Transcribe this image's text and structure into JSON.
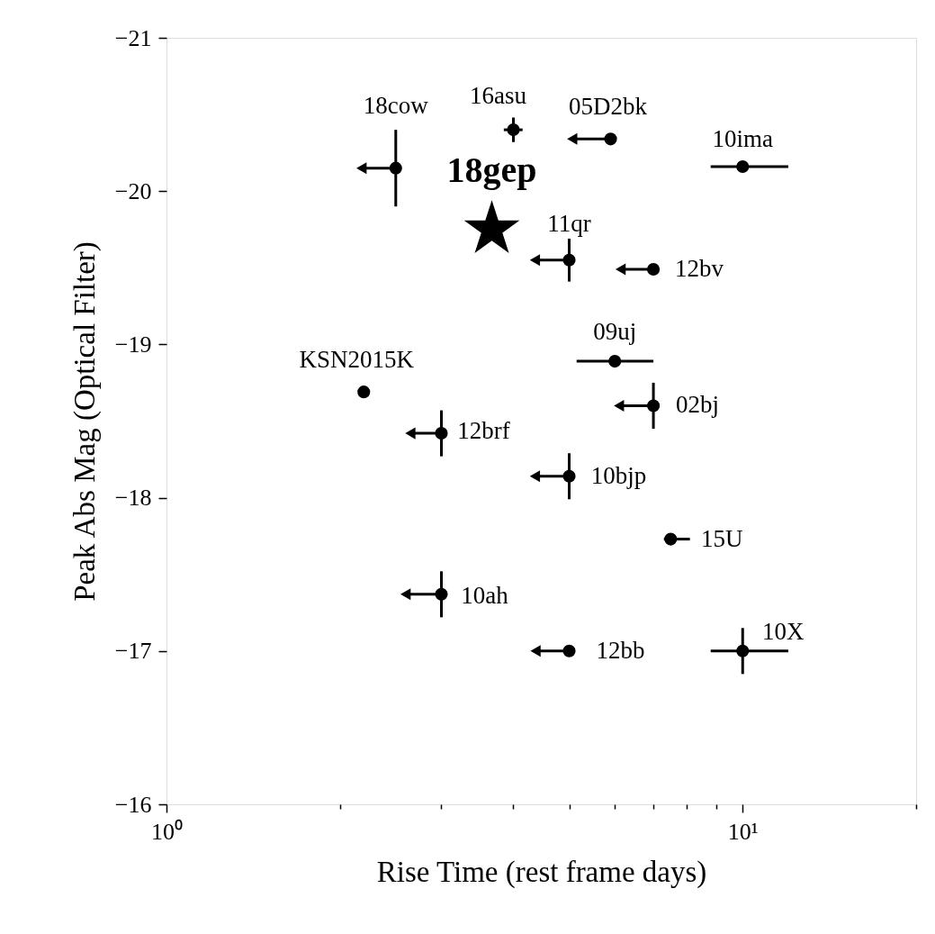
{
  "chart_data": {
    "type": "scatter",
    "xlabel": "Rise Time (rest frame days)",
    "ylabel": "Peak Abs Mag (Optical Filter)",
    "xlim": [
      1,
      20
    ],
    "ylim": [
      -16,
      -21
    ],
    "log": "x",
    "grid": false,
    "legend": false,
    "xticks": [
      {
        "value": 1,
        "label": "10⁰"
      },
      {
        "value": 2,
        "label": null
      },
      {
        "value": 3,
        "label": null
      },
      {
        "value": 4,
        "label": null
      },
      {
        "value": 5,
        "label": null
      },
      {
        "value": 6,
        "label": null
      },
      {
        "value": 7,
        "label": null
      },
      {
        "value": 8,
        "label": null
      },
      {
        "value": 9,
        "label": null
      },
      {
        "value": 10,
        "label": "10¹"
      },
      {
        "value": 20,
        "label": null
      }
    ],
    "yticks": [
      {
        "value": -21,
        "label": "−21"
      },
      {
        "value": -20,
        "label": "−20"
      },
      {
        "value": -19,
        "label": "−19"
      },
      {
        "value": -18,
        "label": "−18"
      },
      {
        "value": -17,
        "label": "−17"
      },
      {
        "value": -16,
        "label": "−16"
      }
    ],
    "series": [
      {
        "marker": "circle",
        "color": "#000000",
        "x": [
          2.5,
          4.0,
          5.9,
          10,
          5.0,
          7.0,
          6.0,
          2.2,
          7.0,
          3.0,
          5.0,
          7.5,
          3.0,
          5.0,
          10
        ],
        "values": [
          -20.15,
          -20.4,
          -20.34,
          -20.16,
          -19.55,
          -19.49,
          -18.89,
          -18.69,
          -18.6,
          -18.42,
          -18.14,
          -17.73,
          -17.37,
          -17.0,
          -17.0
        ],
        "errors": [
          0.25,
          0.08,
          null,
          null,
          0.14,
          null,
          null,
          null,
          0.15,
          0.15,
          0.15,
          null,
          0.15,
          null,
          0.15
        ],
        "xerrors": [
          [
            2.18,
            2.5
          ],
          [
            3.85,
            4.15
          ],
          [
            5.06,
            5.9
          ],
          [
            8.8,
            12
          ],
          [
            4.36,
            5.0
          ],
          [
            6.14,
            7.0
          ],
          [
            5.15,
            7.0
          ],
          null,
          [
            6.1,
            7.0
          ],
          [
            2.65,
            3.0
          ],
          [
            4.36,
            5.0
          ],
          [
            7.3,
            8.1
          ],
          [
            2.6,
            3.0
          ],
          [
            4.37,
            5.0
          ],
          [
            8.8,
            12
          ]
        ]
      },
      {
        "marker": "triangle",
        "color": "#000000",
        "x": [
          2.18,
          5.06,
          4.36,
          6.14,
          6.1,
          2.65,
          4.36,
          2.6,
          4.37
        ],
        "values": [
          -20.15,
          -20.34,
          -19.55,
          -19.49,
          -18.6,
          -18.42,
          -18.14,
          -17.37,
          -17.0
        ]
      },
      {
        "marker": "star",
        "name": "18gep",
        "color": "#000000",
        "x": [
          3.67
        ],
        "values": [
          -19.75
        ]
      }
    ],
    "annotations": [
      {
        "text": "18cow",
        "x": 2.5,
        "y": -20.15
      },
      {
        "text": "16asu",
        "x": 4.0,
        "y": -20.4
      },
      {
        "text": "05D2bk",
        "x": 5.9,
        "y": -20.34
      },
      {
        "text": "10ima",
        "x": 10,
        "y": -20.16
      },
      {
        "text": "11qr",
        "x": 5.0,
        "y": -19.55
      },
      {
        "text": "12bv",
        "x": 7.0,
        "y": -19.49
      },
      {
        "text": "09uj",
        "x": 6.0,
        "y": -18.89
      },
      {
        "text": "KSN2015K",
        "x": 2.2,
        "y": -18.69
      },
      {
        "text": "02bj",
        "x": 7.0,
        "y": -18.6
      },
      {
        "text": "12brf",
        "x": 3.0,
        "y": -18.42
      },
      {
        "text": "10bjp",
        "x": 5.0,
        "y": -18.14
      },
      {
        "text": "15U",
        "x": 7.5,
        "y": -17.73
      },
      {
        "text": "10ah",
        "x": 3.0,
        "y": -17.37
      },
      {
        "text": "12bb",
        "x": 5.0,
        "y": -17.0
      },
      {
        "text": "10X",
        "x": 10,
        "y": -17.0
      }
    ]
  }
}
